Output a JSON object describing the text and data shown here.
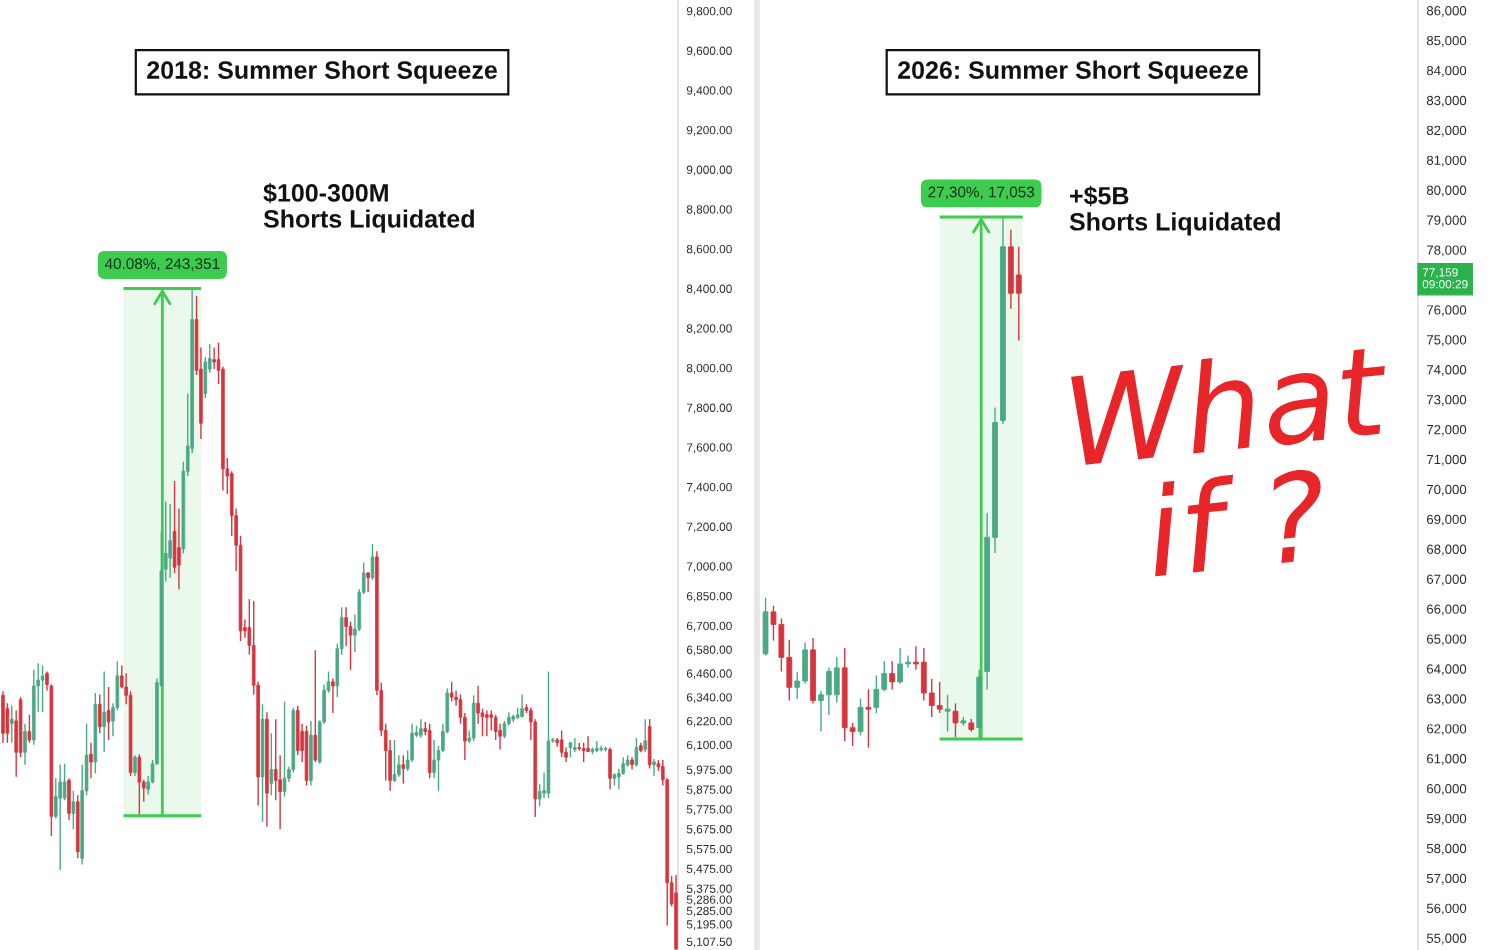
{
  "chart_data": [
    {
      "type": "candlestick",
      "title": "2018: Summer Short Squeeze",
      "categories": [
        null,
        null,
        null,
        null,
        null,
        null,
        null,
        null,
        null,
        null,
        null,
        null,
        null,
        null,
        null,
        null,
        null,
        null,
        null,
        null,
        null,
        null,
        null,
        null,
        null,
        null,
        null,
        null,
        null,
        null,
        null,
        null,
        null,
        null,
        null,
        null,
        null,
        null,
        null,
        null,
        null,
        null,
        null,
        null,
        null,
        null,
        null,
        null,
        null,
        null,
        null,
        null,
        null,
        null,
        null,
        null,
        null,
        null,
        null,
        null,
        null,
        null,
        null,
        null,
        null,
        null,
        null,
        null,
        null,
        null,
        null,
        null,
        null,
        null,
        null,
        null,
        null,
        null,
        null,
        null,
        null,
        null,
        null,
        null,
        null,
        null,
        null,
        null,
        null,
        null,
        null,
        null,
        null,
        null,
        null,
        null,
        null,
        null,
        null,
        null,
        null,
        null,
        null,
        null,
        null,
        null,
        null,
        null,
        null,
        null,
        null,
        null,
        null,
        null,
        null,
        null,
        null,
        null,
        null,
        null,
        null,
        null,
        null,
        null,
        null,
        null,
        null,
        null,
        null,
        null,
        null,
        null,
        null,
        null,
        null,
        null,
        null,
        null,
        null,
        null,
        null,
        null,
        null,
        null,
        null,
        null,
        null,
        null,
        null,
        null,
        null,
        null,
        null,
        null
      ],
      "ohlc": [
        [
          6349,
          6370,
          6110,
          6158
        ],
        [
          6282,
          6309,
          6110,
          6158
        ],
        [
          6206,
          6296,
          6110,
          6229
        ],
        [
          6220,
          6273,
          5938,
          6062
        ],
        [
          6327,
          6340,
          6037,
          6062
        ],
        [
          6062,
          6206,
          5999,
          6167
        ],
        [
          6167,
          6251,
          6110,
          6124
        ],
        [
          6124,
          6477,
          6100,
          6396
        ],
        [
          6396,
          6511,
          6264,
          6426
        ],
        [
          6426,
          6499,
          6264,
          6447
        ],
        [
          6460,
          6469,
          6374,
          6404
        ],
        [
          6396,
          6404,
          5640,
          5739
        ],
        [
          5739,
          5931,
          5729,
          5838
        ],
        [
          5831,
          5999,
          5468,
          5912
        ],
        [
          5831,
          6004,
          5820,
          5912
        ],
        [
          5920,
          5931,
          5721,
          5754
        ],
        [
          5754,
          5868,
          5675,
          5812
        ],
        [
          5812,
          5845,
          5527,
          5561
        ],
        [
          5527,
          5999,
          5496,
          5868
        ],
        [
          5868,
          6206,
          5845,
          6047
        ],
        [
          6052,
          6110,
          5931,
          6013
        ],
        [
          6013,
          6361,
          5956,
          6304
        ],
        [
          6304,
          6353,
          6158,
          6191
        ],
        [
          6191,
          6469,
          6062,
          6264
        ],
        [
          6273,
          6391,
          6124,
          6215
        ],
        [
          6220,
          6309,
          6143,
          6287
        ],
        [
          6287,
          6520,
          6273,
          6447
        ],
        [
          6447,
          6499,
          6383,
          6391
        ],
        [
          6391,
          6460,
          6304,
          6349
        ],
        [
          6349,
          6370,
          5942,
          5960
        ],
        [
          5960,
          6047,
          5942,
          6037
        ],
        [
          6037,
          6052,
          5742,
          5912
        ],
        [
          5912,
          5923,
          5812,
          5882
        ],
        [
          5875,
          5942,
          5849,
          5912
        ],
        [
          5912,
          6023,
          5905,
          6004
        ],
        [
          6004,
          6434,
          5999,
          6413
        ],
        [
          6400,
          7176,
          6391,
          6976
        ],
        [
          6985,
          7327,
          6923,
          7065
        ],
        [
          7041,
          7315,
          6942,
          7129
        ],
        [
          7176,
          7430,
          6966,
          6995
        ],
        [
          7094,
          7291,
          6884,
          7006
        ],
        [
          7088,
          7527,
          7065,
          7479
        ],
        [
          7479,
          7871,
          7455,
          7606
        ],
        [
          7594,
          8400,
          7570,
          8244
        ],
        [
          8244,
          8363,
          7965,
          7988
        ],
        [
          7994,
          8103,
          7642,
          7721
        ],
        [
          7871,
          8055,
          7847,
          8030
        ],
        [
          7994,
          8121,
          7976,
          8048
        ],
        [
          8042,
          8103,
          7994,
          8030
        ],
        [
          8042,
          8127,
          7918,
          7988
        ],
        [
          7994,
          8006,
          7382,
          7491
        ],
        [
          7491,
          7545,
          7364,
          7455
        ],
        [
          7467,
          7479,
          7153,
          7255
        ],
        [
          7255,
          7291,
          6976,
          7106
        ],
        [
          7106,
          7153,
          6623,
          6674
        ],
        [
          6691,
          6731,
          6640,
          6674
        ],
        [
          6691,
          6834,
          6554,
          6601
        ],
        [
          6601,
          6824,
          6353,
          6400
        ],
        [
          6400,
          6417,
          5794,
          5938
        ],
        [
          5938,
          6304,
          5711,
          6229
        ],
        [
          6229,
          6264,
          5686,
          5856
        ],
        [
          5905,
          6158,
          5845,
          5975
        ],
        [
          5975,
          6229,
          5820,
          5920
        ],
        [
          5923,
          6047,
          5675,
          5864
        ],
        [
          5864,
          6318,
          5838,
          5931
        ],
        [
          5931,
          5989,
          5912,
          5975
        ],
        [
          5975,
          6287,
          5960,
          6273
        ],
        [
          6273,
          6296,
          6047,
          6071
        ],
        [
          6167,
          6206,
          6013,
          6071
        ],
        [
          6167,
          6196,
          5894,
          5920
        ],
        [
          5920,
          6220,
          5894,
          6148
        ],
        [
          6148,
          6576,
          6013,
          6023
        ],
        [
          6013,
          6224,
          6004,
          6215
        ],
        [
          6215,
          6404,
          6206,
          6374
        ],
        [
          6374,
          6469,
          6361,
          6417
        ],
        [
          6417,
          6434,
          6260,
          6396
        ],
        [
          6396,
          6610,
          6340,
          6584
        ],
        [
          6584,
          6793,
          6554,
          6741
        ],
        [
          6741,
          6793,
          6597,
          6696
        ],
        [
          6696,
          6720,
          6477,
          6653
        ],
        [
          6653,
          6757,
          6567,
          6683
        ],
        [
          6683,
          6884,
          6674,
          6869
        ],
        [
          6869,
          7018,
          6860,
          6966
        ],
        [
          6966,
          6971,
          6869,
          6942
        ],
        [
          6942,
          7112,
          6932,
          7047
        ],
        [
          7047,
          7076,
          6349,
          6374
        ],
        [
          6374,
          6413,
          6143,
          6172
        ],
        [
          6172,
          6206,
          5920,
          6071
        ],
        [
          6071,
          6124,
          5868,
          5920
        ],
        [
          5920,
          6124,
          5912,
          5949
        ],
        [
          5949,
          6047,
          5938,
          5999
        ],
        [
          5999,
          6047,
          5905,
          5980
        ],
        [
          5980,
          6071,
          5968,
          6023
        ],
        [
          6023,
          6206,
          6013,
          6158
        ],
        [
          6148,
          6196,
          6138,
          6162
        ],
        [
          6148,
          6229,
          6134,
          6181
        ],
        [
          6181,
          6215,
          6148,
          6167
        ],
        [
          6172,
          6206,
          5931,
          5960
        ],
        [
          5960,
          6124,
          5931,
          6023
        ],
        [
          6023,
          6095,
          5868,
          6071
        ],
        [
          6071,
          6206,
          6062,
          6167
        ],
        [
          6167,
          6383,
          6158,
          6361
        ],
        [
          6361,
          6417,
          6318,
          6340
        ],
        [
          6340,
          6374,
          6296,
          6327
        ],
        [
          6327,
          6353,
          6206,
          6238
        ],
        [
          6238,
          6260,
          6023,
          6119
        ],
        [
          6119,
          6172,
          6110,
          6134
        ],
        [
          6134,
          6349,
          6119,
          6309
        ],
        [
          6309,
          6396,
          6206,
          6260
        ],
        [
          6260,
          6282,
          6143,
          6242
        ],
        [
          6251,
          6273,
          6143,
          6238
        ],
        [
          6251,
          6273,
          6172,
          6238
        ],
        [
          6238,
          6251,
          6124,
          6167
        ],
        [
          6172,
          6206,
          6076,
          6143
        ],
        [
          6143,
          6220,
          6134,
          6206
        ],
        [
          6206,
          6264,
          6196,
          6238
        ],
        [
          6229,
          6251,
          6215,
          6242
        ],
        [
          6238,
          6287,
          6229,
          6251
        ],
        [
          6242,
          6353,
          6238,
          6282
        ],
        [
          6287,
          6304,
          6260,
          6273
        ],
        [
          6273,
          6287,
          6124,
          6215
        ],
        [
          6215,
          6229,
          5736,
          5827
        ],
        [
          5827,
          5901,
          5790,
          5864
        ],
        [
          5856,
          5960,
          5831,
          5868
        ],
        [
          5856,
          6469,
          5831,
          6119
        ],
        [
          6119,
          6134,
          6110,
          6124
        ],
        [
          6124,
          6134,
          6090,
          6110
        ],
        [
          6124,
          6172,
          6037,
          6062
        ],
        [
          6062,
          6086,
          6013,
          6037
        ],
        [
          6086,
          6110,
          6037,
          6110
        ],
        [
          6076,
          6134,
          6062,
          6086
        ],
        [
          6086,
          6110,
          6071,
          6081
        ],
        [
          6081,
          6110,
          6013,
          6071
        ],
        [
          6081,
          6143,
          6062,
          6066
        ],
        [
          6066,
          6086,
          6052,
          6076
        ],
        [
          6071,
          6119,
          6062,
          6081
        ],
        [
          6076,
          6095,
          6066,
          6081
        ],
        [
          6076,
          6090,
          6066,
          6081
        ],
        [
          6076,
          6086,
          5875,
          5931
        ],
        [
          5931,
          5956,
          5894,
          5949
        ],
        [
          5938,
          5979,
          5875,
          5956
        ],
        [
          5956,
          6037,
          5949,
          6004
        ],
        [
          5999,
          6047,
          5989,
          6023
        ],
        [
          6023,
          6037,
          5975,
          5999
        ],
        [
          5999,
          6134,
          5989,
          6086
        ],
        [
          6095,
          6110,
          6062,
          6071
        ],
        [
          6076,
          6229,
          6062,
          6119
        ],
        [
          6191,
          6229,
          5980,
          5999
        ],
        [
          5999,
          6028,
          5942,
          6013
        ],
        [
          6004,
          6023,
          5968,
          5989
        ],
        [
          5989,
          6023,
          5894,
          5923
        ],
        [
          5923,
          5931,
          5189,
          5404
        ],
        [
          5404,
          5439,
          5285,
          5297
        ],
        [
          5353,
          5443,
          5066,
          5070
        ]
      ],
      "ylim": [
        5065,
        9855
      ],
      "yticks": [
        {
          "value": 9800,
          "label": "9,800.00"
        },
        {
          "value": 9600,
          "label": "9,600.00"
        },
        {
          "value": 9400,
          "label": "9,400.00"
        },
        {
          "value": 9200,
          "label": "9,200.00"
        },
        {
          "value": 9000,
          "label": "9,000.00"
        },
        {
          "value": 8800,
          "label": "8,800.00"
        },
        {
          "value": 8600,
          "label": "8,600.00"
        },
        {
          "value": 8400,
          "label": "8,400.00"
        },
        {
          "value": 8200,
          "label": "8,200.00"
        },
        {
          "value": 8000,
          "label": "8,000.00"
        },
        {
          "value": 7800,
          "label": "7,800.00"
        },
        {
          "value": 7600,
          "label": "7,600.00"
        },
        {
          "value": 7400,
          "label": "7,400.00"
        },
        {
          "value": 7200,
          "label": "7,200.00"
        },
        {
          "value": 7000,
          "label": "7,000.00"
        },
        {
          "value": 6850,
          "label": "6,850.00"
        },
        {
          "value": 6700,
          "label": "6,700.00"
        },
        {
          "value": 6580,
          "label": "6,580.00"
        },
        {
          "value": 6460,
          "label": "6,460.00"
        },
        {
          "value": 6340,
          "label": "6,340.00"
        },
        {
          "value": 6220,
          "label": "6,220.00"
        },
        {
          "value": 6100,
          "label": "6,100.00"
        },
        {
          "value": 5975,
          "label": "5,975.00"
        },
        {
          "value": 5875,
          "label": "5,875.00"
        },
        {
          "value": 5775,
          "label": "5,775.00"
        },
        {
          "value": 5675,
          "label": "5,675.00"
        },
        {
          "value": 5575,
          "label": "5,575.00"
        },
        {
          "value": 5475,
          "label": "5,475.00"
        },
        {
          "value": 5375,
          "label": "5,375.00"
        },
        {
          "value": 5286,
          "label": "5,286.00"
        },
        {
          "value": 5285,
          "label": "5,285.00"
        },
        {
          "value": 5195,
          "label": "5,195.00"
        },
        {
          "value": 5107.5,
          "label": "5,107.50"
        }
      ],
      "bands": [
        {
          "axis": "y",
          "from": 5742,
          "to": 8400,
          "label": "40.08%, 243,351",
          "color": "#3dcc4f"
        }
      ],
      "annotations": [
        "$100-300M\nShorts Liquidated"
      ],
      "tick_labels": "y"
    },
    {
      "type": "candlestick",
      "title": "2026: Summer Short Squeeze",
      "categories": [
        null,
        null,
        null,
        null,
        null,
        null,
        null,
        null,
        null,
        null,
        null,
        null,
        null,
        null,
        null,
        null,
        null,
        null,
        null,
        null,
        null,
        null,
        null,
        null,
        null,
        null,
        null,
        null,
        null,
        null,
        null,
        null,
        null,
        null,
        null,
        null,
        null,
        null,
        null,
        null,
        null,
        null,
        null,
        null,
        null,
        null,
        null,
        null,
        null,
        null,
        null,
        null,
        null,
        null,
        null,
        null,
        null,
        null,
        null,
        null,
        null,
        null,
        null,
        null,
        null,
        null,
        null,
        null,
        null,
        null,
        null,
        null,
        null,
        null,
        null,
        null,
        null,
        null,
        null,
        null,
        null,
        null,
        null
      ],
      "ohlc": [
        [
          64500,
          66370,
          64440,
          65900
        ],
        [
          65900,
          66100,
          64940,
          65480
        ],
        [
          65480,
          65680,
          63910,
          64380
        ],
        [
          64380,
          64970,
          62940,
          63380
        ],
        [
          63380,
          63880,
          63000,
          63590
        ],
        [
          63590,
          64880,
          63500,
          64630
        ],
        [
          64630,
          65030,
          62840,
          62940
        ],
        [
          62940,
          63250,
          61900,
          63130
        ],
        [
          63130,
          64030,
          62450,
          63910
        ],
        [
          63130,
          64380,
          62870,
          64030
        ],
        [
          64030,
          64690,
          61580,
          62030
        ],
        [
          62030,
          62190,
          61420,
          61900
        ],
        [
          61900,
          63000,
          61770,
          62710
        ],
        [
          62710,
          63310,
          61360,
          62650
        ],
        [
          62710,
          63780,
          62520,
          63310
        ],
        [
          63310,
          64250,
          63250,
          63840
        ],
        [
          63840,
          64250,
          63310,
          63560
        ],
        [
          63560,
          64690,
          63500,
          64160
        ],
        [
          64160,
          64440,
          64030,
          64220
        ],
        [
          64220,
          64750,
          63970,
          64160
        ],
        [
          64220,
          64690,
          62940,
          63190
        ],
        [
          63190,
          63660,
          62390,
          62770
        ],
        [
          62770,
          63560,
          62520,
          62650
        ],
        [
          62580,
          63130,
          61900,
          62650
        ],
        [
          62580,
          62840,
          61710,
          62190
        ],
        [
          62190,
          62390,
          62100,
          62260
        ],
        [
          62190,
          62320,
          61900,
          61970
        ],
        [
          62030,
          63970,
          61650,
          63720
        ],
        [
          63910,
          69200,
          63310,
          68390
        ],
        [
          68390,
          72730,
          67870,
          72230
        ],
        [
          72300,
          79100,
          72170,
          78100
        ],
        [
          78100,
          78670,
          76030,
          76550
        ],
        [
          77160,
          78100,
          74970,
          76550
        ],
        null,
        null,
        null,
        null,
        null,
        null,
        null,
        null,
        null,
        null,
        null,
        null,
        null,
        null,
        null,
        null,
        null,
        null,
        null,
        null,
        null,
        null,
        null,
        null,
        null,
        null,
        null,
        null,
        null,
        null,
        null,
        null,
        null,
        null,
        null,
        null,
        null,
        null,
        null,
        null,
        null,
        null,
        null,
        null,
        null,
        null,
        null,
        null,
        null,
        null
      ],
      "ylim": [
        54600,
        86350
      ],
      "yticks": [
        {
          "value": 86000,
          "label": "86,000"
        },
        {
          "value": 85000,
          "label": "85,000"
        },
        {
          "value": 84000,
          "label": "84,000"
        },
        {
          "value": 83000,
          "label": "83,000"
        },
        {
          "value": 82000,
          "label": "82,000"
        },
        {
          "value": 81000,
          "label": "81,000"
        },
        {
          "value": 80000,
          "label": "80,000"
        },
        {
          "value": 79000,
          "label": "79,000"
        },
        {
          "value": 78000,
          "label": "78,000"
        },
        {
          "value": 76000,
          "label": "76,000"
        },
        {
          "value": 75000,
          "label": "75,000"
        },
        {
          "value": 74000,
          "label": "74,000"
        },
        {
          "value": 73000,
          "label": "73,000"
        },
        {
          "value": 72000,
          "label": "72,000"
        },
        {
          "value": 71000,
          "label": "71,000"
        },
        {
          "value": 70000,
          "label": "70,000"
        },
        {
          "value": 69000,
          "label": "69,000"
        },
        {
          "value": 68000,
          "label": "68,000"
        },
        {
          "value": 67000,
          "label": "67,000"
        },
        {
          "value": 66000,
          "label": "66,000"
        },
        {
          "value": 65000,
          "label": "65,000"
        },
        {
          "value": 64000,
          "label": "64,000"
        },
        {
          "value": 63000,
          "label": "63,000"
        },
        {
          "value": 62000,
          "label": "62,000"
        },
        {
          "value": 61000,
          "label": "61,000"
        },
        {
          "value": 60000,
          "label": "60,000"
        },
        {
          "value": 59000,
          "label": "59,000"
        },
        {
          "value": 58000,
          "label": "58,000"
        },
        {
          "value": 57000,
          "label": "57,000"
        },
        {
          "value": 56000,
          "label": "56,000"
        },
        {
          "value": 55000,
          "label": "55,000"
        }
      ],
      "bands": [
        {
          "axis": "y",
          "from": 61650,
          "to": 79100,
          "label": "27,30%, 17,053",
          "color": "#3dcc4f"
        }
      ],
      "annotations": [
        "+$5B\nShorts Liquidated",
        "What\nif ?",
        "77,159\n09:00:29"
      ],
      "tick_labels": "y"
    }
  ]
}
